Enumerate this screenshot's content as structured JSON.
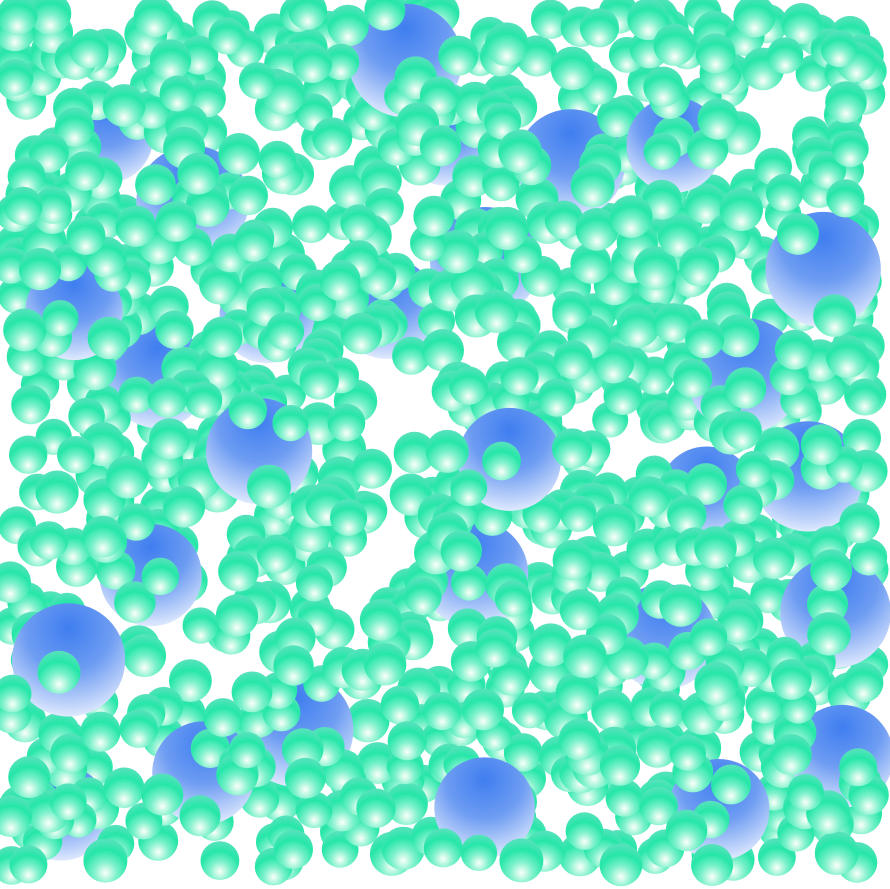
{
  "scene": {
    "title": "",
    "background": "#ffffff",
    "small_sphere_count": 980,
    "large_sphere_count": 28,
    "colors": {
      "small_highlight": "#fbfff9",
      "small_mid": "#7cf1cb",
      "small_base": "#25e6a8",
      "small_shadow": "#55e2bb",
      "large_highlight": "#f6f9ff",
      "large_mid": "#6d9cf2",
      "large_base": "#3f7ef0",
      "large_shadow": "#8fb2f6"
    },
    "icons": {
      "small_sphere": "green-sphere-icon",
      "large_sphere": "blue-sphere-icon"
    }
  }
}
